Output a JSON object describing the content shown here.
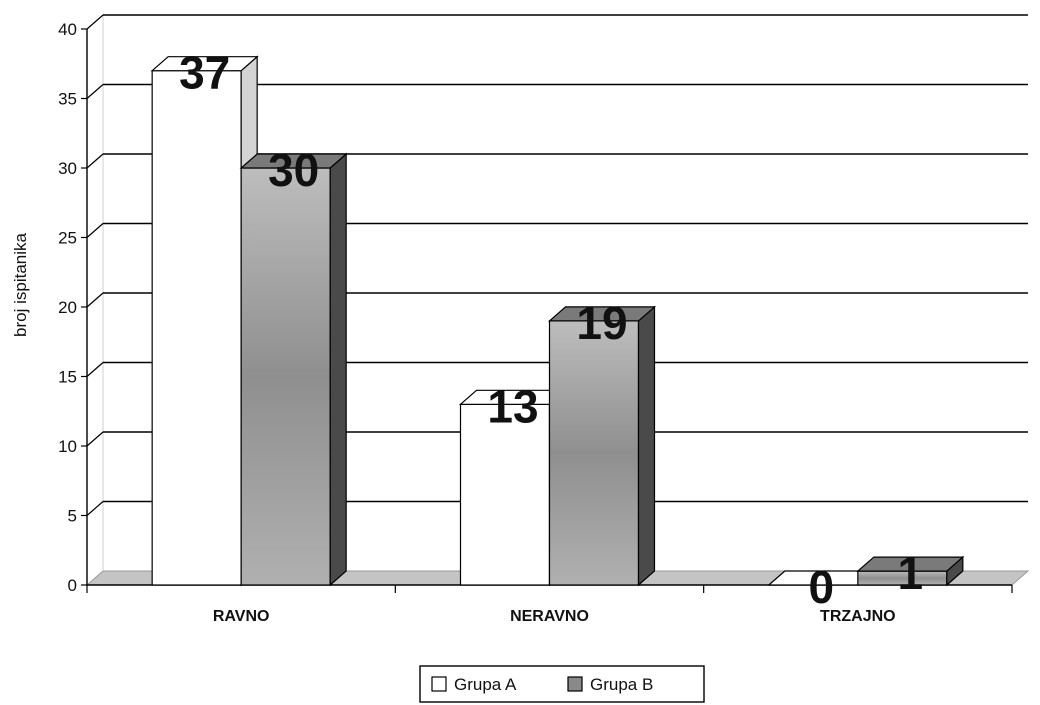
{
  "chart_data": {
    "type": "bar",
    "style": "3d-clustered-column",
    "categories": [
      "RAVNO",
      "NERAVNO",
      "TRZAJNO"
    ],
    "series": [
      {
        "name": "Grupa A",
        "values": [
          37,
          13,
          0
        ],
        "color": "#ffffff"
      },
      {
        "name": "Grupa B",
        "values": [
          30,
          19,
          1
        ],
        "color": "#8a8a8a"
      }
    ],
    "ylabel": "broj ispitanika",
    "xlabel": "",
    "ylim": [
      0,
      40
    ],
    "yticks": [
      "0",
      "5",
      "10",
      "15",
      "20",
      "25",
      "30",
      "35",
      "40"
    ],
    "grid": true,
    "legend": "bottom",
    "data_labels": true
  }
}
